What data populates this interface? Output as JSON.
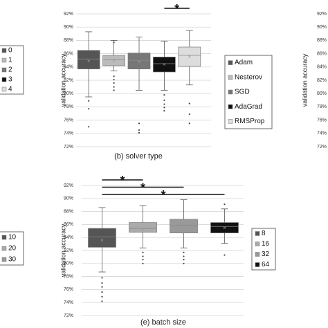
{
  "chart_data": [
    {
      "type": "box",
      "caption": "(b) solver type",
      "ylabel": "validation accuracy",
      "ylim": [
        72,
        92
      ],
      "yticks": [
        {
          "value": 72,
          "label": "72%"
        },
        {
          "value": 74,
          "label": "74%"
        },
        {
          "value": 76,
          "label": "76%"
        },
        {
          "value": 78,
          "label": "78%"
        },
        {
          "value": 80,
          "label": "80%"
        },
        {
          "value": 82,
          "label": "82%"
        },
        {
          "value": 84,
          "label": "84%"
        },
        {
          "value": 86,
          "label": "86%"
        },
        {
          "value": 88,
          "label": "88%"
        },
        {
          "value": 90,
          "label": "90%"
        },
        {
          "value": 92,
          "label": "92%"
        }
      ],
      "grid": true,
      "series": [
        {
          "name": "Adam",
          "color": "#555555",
          "min": 79.5,
          "q1": 83.7,
          "median": 85.2,
          "q3": 86.5,
          "max": 89.3,
          "mean": 84.9,
          "outliers": [
            78.9,
            77.7,
            75
          ]
        },
        {
          "name": "Nesterov",
          "color": "#bbbbbb",
          "min": 83.4,
          "q1": 84.2,
          "median": 85.1,
          "q3": 85.75,
          "max": 88,
          "mean": 85,
          "outliers": [
            87.7,
            82.6,
            82.1,
            81.6,
            81,
            80.5
          ]
        },
        {
          "name": "SGD",
          "color": "#777777",
          "min": 80.5,
          "q1": 83.7,
          "median": 85,
          "q3": 86.1,
          "max": 88.5,
          "mean": 84.8,
          "outliers": [
            75.5,
            74.5,
            74.1
          ]
        },
        {
          "name": "AdaGrad",
          "color": "#111111",
          "min": 80.5,
          "q1": 83.25,
          "median": 84.5,
          "q3": 85.5,
          "max": 87.9,
          "mean": 84.4,
          "outliers": [
            79.8,
            79,
            78.4,
            77.9,
            77.4
          ]
        },
        {
          "name": "RMSProp",
          "color": "#dddddd",
          "min": 81.3,
          "q1": 84.1,
          "median": 85.75,
          "q3": 87,
          "max": 89.5,
          "mean": 85.6,
          "outliers": [
            78.5,
            76.9,
            75.5
          ]
        }
      ],
      "significance": [
        {
          "label": "*",
          "from": 3,
          "to": 4
        }
      ]
    },
    {
      "type": "box",
      "caption": "(e) batch size",
      "ylabel": "validation accuracy",
      "ylim": [
        72,
        92
      ],
      "yticks": [
        {
          "value": 72,
          "label": "72%"
        },
        {
          "value": 74,
          "label": "74%"
        },
        {
          "value": 76,
          "label": "76%"
        },
        {
          "value": 78,
          "label": "78%"
        },
        {
          "value": 80,
          "label": "80%"
        },
        {
          "value": 82,
          "label": "82%"
        },
        {
          "value": 84,
          "label": "84%"
        },
        {
          "value": 86,
          "label": "86%"
        },
        {
          "value": 88,
          "label": "88%"
        },
        {
          "value": 90,
          "label": "90%"
        },
        {
          "value": 92,
          "label": "92%"
        }
      ],
      "grid": true,
      "series": [
        {
          "name": "8",
          "color": "#555555",
          "min": 78.7,
          "q1": 82.5,
          "median": 84.1,
          "q3": 85.4,
          "max": 88.6,
          "mean": 83.6,
          "outliers": [
            77.8,
            77,
            76.4,
            75.6,
            74.9,
            74.2
          ]
        },
        {
          "name": "16",
          "color": "#aaaaaa",
          "min": 82.4,
          "q1": 84.8,
          "median": 85.4,
          "q3": 86.3,
          "max": 88.9,
          "mean": 85.3,
          "outliers": [
            81.7,
            81.1,
            80.6,
            80
          ]
        },
        {
          "name": "32",
          "color": "#999999",
          "min": 82.4,
          "q1": 84.7,
          "median": 85.9,
          "q3": 86.8,
          "max": 89.8,
          "mean": 85.7,
          "outliers": [
            81.7,
            81.1,
            80.6,
            80
          ]
        },
        {
          "name": "64",
          "color": "#111111",
          "min": 83.1,
          "q1": 84.7,
          "median": 85.7,
          "q3": 86.3,
          "max": 88.4,
          "mean": 85.5,
          "outliers": [
            89.1,
            81.3
          ]
        }
      ],
      "significance": [
        {
          "label": "*",
          "from": 0,
          "to": 1
        },
        {
          "label": "*",
          "from": 0,
          "to": 2
        },
        {
          "label": "*",
          "from": 0,
          "to": 3
        }
      ]
    },
    {
      "type": "box",
      "ylabel": "validation accuracy",
      "ylim": [
        72,
        92
      ],
      "yticks": [
        {
          "value": 72,
          "label": "72%"
        },
        {
          "value": 74,
          "label": "74%"
        },
        {
          "value": 76,
          "label": "76%"
        },
        {
          "value": 78,
          "label": "78%"
        },
        {
          "value": 80,
          "label": "80%"
        },
        {
          "value": 82,
          "label": "82%"
        },
        {
          "value": 84,
          "label": "84%"
        },
        {
          "value": 86,
          "label": "86%"
        },
        {
          "value": 88,
          "label": "88%"
        },
        {
          "value": 90,
          "label": "90%"
        },
        {
          "value": 92,
          "label": "92%"
        }
      ]
    },
    {
      "type": "box",
      "series": [
        {
          "name": "0",
          "color": "#555555"
        },
        {
          "name": "1",
          "color": "#bbbbbb"
        },
        {
          "name": "2",
          "color": "#777777"
        },
        {
          "name": "3",
          "color": "#111111"
        },
        {
          "name": "4",
          "color": "#dddddd"
        }
      ]
    },
    {
      "type": "box",
      "series": [
        {
          "name": "10",
          "color": "#555555"
        },
        {
          "name": "20",
          "color": "#aaaaaa"
        },
        {
          "name": "30",
          "color": "#999999"
        }
      ]
    }
  ]
}
